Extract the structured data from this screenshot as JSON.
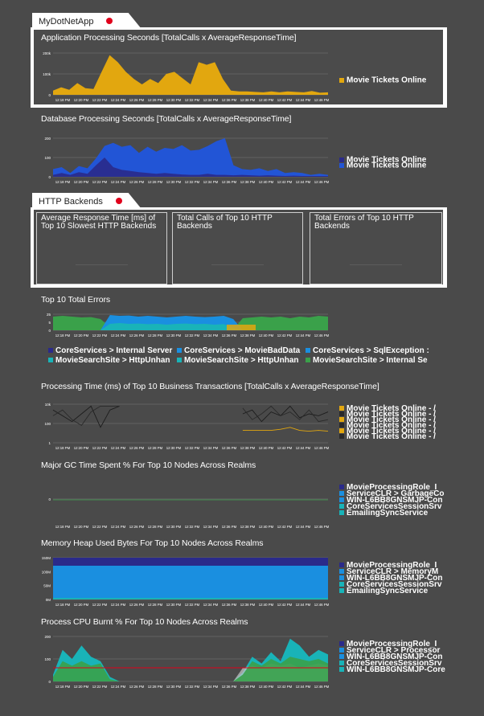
{
  "sections": {
    "app": "MyDotNetApp",
    "http": "HTTP Backends"
  },
  "charts": {
    "app_proc": {
      "title": "Application Processing Seconds [TotalCalls x AverageResponseTime]",
      "legend": [
        "Movie Tickets Online"
      ],
      "yticks": [
        "200k",
        "100k",
        "0"
      ],
      "color": "#e2a70f"
    },
    "db_proc": {
      "title": "Database Processing Seconds [TotalCalls x AverageResponseTime]",
      "legend": [
        "Movie Tickets Online",
        "Movie Tickets Online"
      ],
      "yticks": [
        "200",
        "100",
        "0"
      ],
      "color": "#2255d6"
    },
    "errors": {
      "title": "Top 10 Total Errors",
      "yticks": [
        "25",
        "5",
        "0"
      ],
      "legend": [
        "CoreServices > Internal Server",
        "CoreServices > MovieBadData",
        "CoreServices > SqlException :",
        "MovieSearchSite > HttpUnhan",
        "MovieSearchSite > HttpUnhan",
        "MovieSearchSite > Internal Se"
      ]
    },
    "bt": {
      "title": "Processing Time (ms) of Top 10 Business Transactions [TotalCalls x AverageResponseTime]",
      "yticks": [
        "10k",
        "100",
        "1"
      ],
      "legend": [
        "Movie Tickets Online - /",
        "Movie Tickets Online - /",
        "Movie Tickets Online - /",
        "Movie Tickets Online - /",
        "Movie Tickets Online - /",
        "Movie Tickets Online - /"
      ]
    },
    "gc": {
      "title": "Major GC Time Spent % For Top 10 Nodes Across Realms",
      "yticks": [
        "0"
      ],
      "legend": [
        "MovieProcessingRole_I",
        "ServiceCLR > GarbageCo",
        "WIN-L6BB8GNSMJP-Con",
        "CoreServicesSessionSrv",
        "EmailingSyncService"
      ]
    },
    "heap": {
      "title": "Memory Heap Used Bytes For Top 10 Nodes Across Realms",
      "yticks": [
        "150M",
        "100M",
        "50M",
        "0M"
      ],
      "legend": [
        "MovieProcessingRole_I",
        "ServiceCLR > MemoryM",
        "WIN-L6BB8GNSMJP-Con",
        "CoreServicesSessionSrv",
        "EmailingSyncService"
      ]
    },
    "cpu": {
      "title": "Process CPU Burnt % For Top 10 Nodes Across Realms",
      "yticks": [
        "200",
        "100",
        "0"
      ],
      "legend": [
        "MovieProcessingRole_I",
        "ServiceCLR > Processor",
        "WIN-L6BB8GNSMJP-Con",
        "CoreServicesSessionSrv",
        "WIN-L6BB8GNSMJP-Core"
      ]
    }
  },
  "xticks": [
    "12:18 PM",
    "12:20 PM",
    "12:22 PM",
    "12:24 PM",
    "12:26 PM",
    "12:28 PM",
    "12:30 PM",
    "12:32 PM",
    "12:34 PM",
    "12:36 PM",
    "12:38 PM",
    "12:40 PM",
    "12:42 PM",
    "12:44 PM",
    "12:46 PM"
  ],
  "tiles": [
    "Average Response Time [ms] of Top 10 Slowest HTTP Backends",
    "Total Calls of Top 10 HTTP Backends",
    "Total Errors of Top 10 HTTP Backends"
  ],
  "colors": {
    "bg": "#4a4a4a",
    "app_gold": "#e2a70f",
    "db_blue": "#2255d6",
    "navy": "#2a2a8a",
    "sky": "#1a8fe0",
    "teal": "#19b3b8",
    "green": "#3aa14a",
    "alarm_red": "#e0001b"
  }
}
